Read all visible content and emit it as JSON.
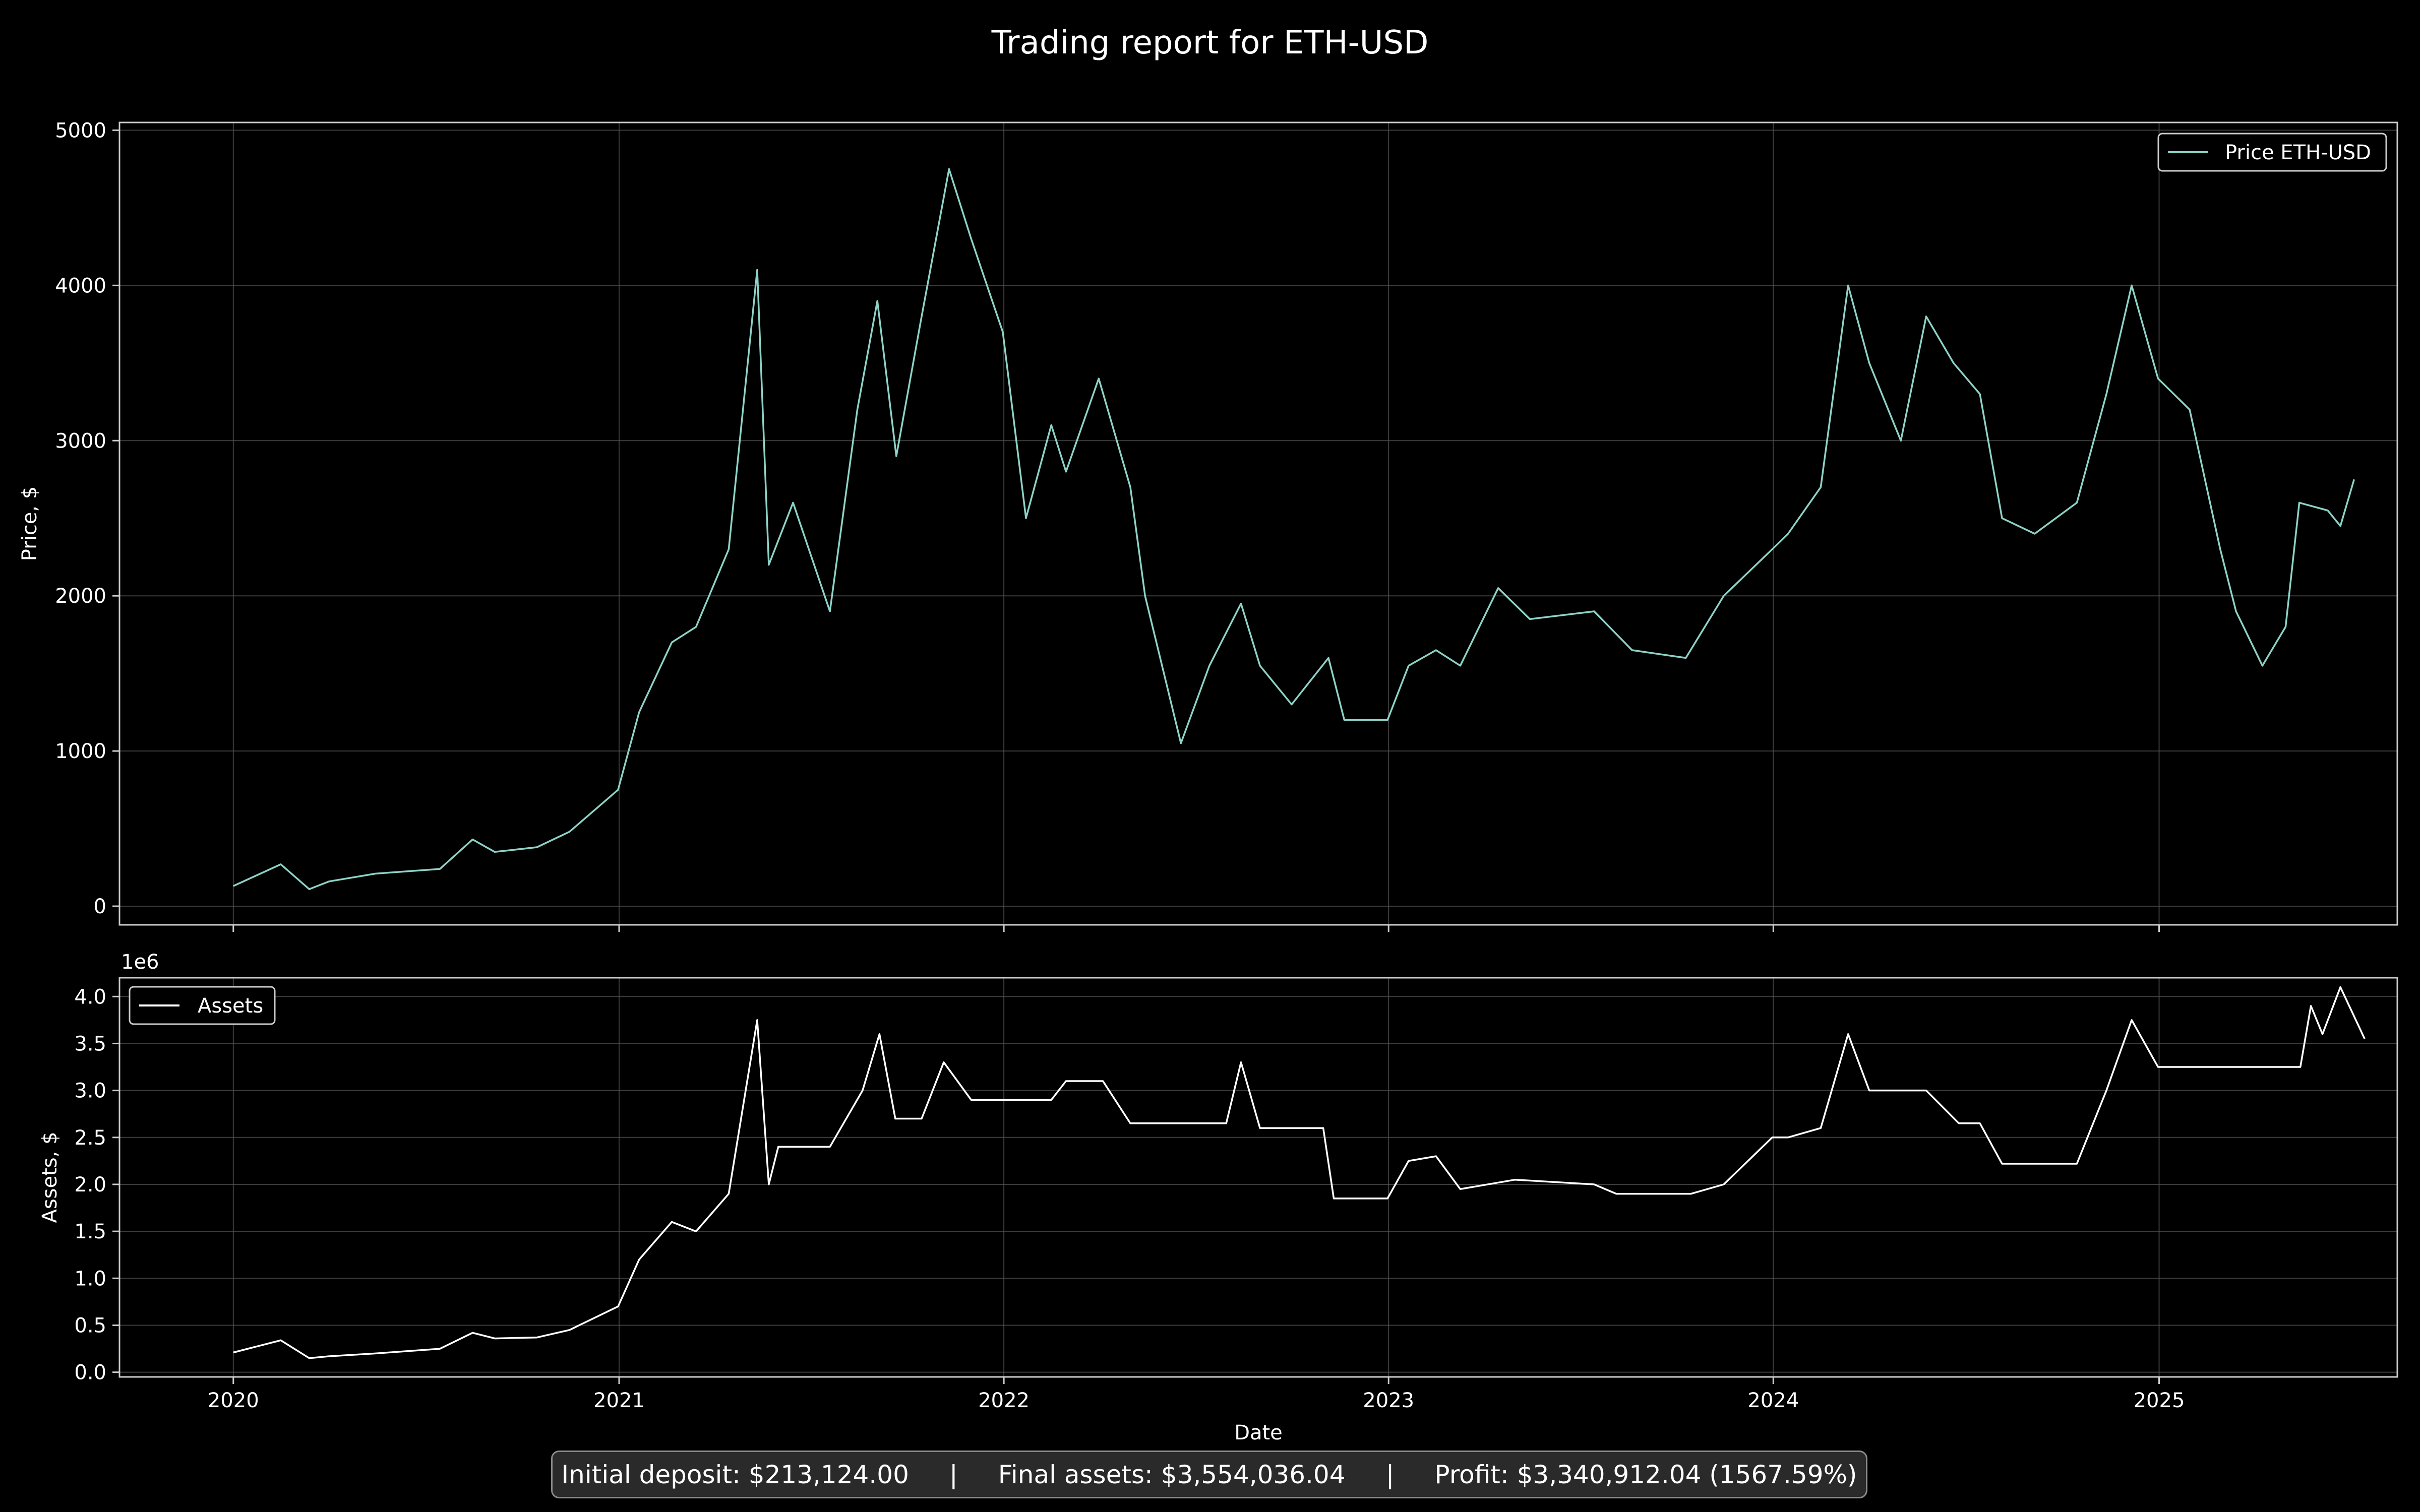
{
  "title": "Trading report for ETH-USD",
  "summary": {
    "initial": "Initial deposit: $213,124.00",
    "final": "Final assets: $3,554,036.04",
    "profit": "Profit: $3,340,912.04 (1567.59%)",
    "separator": "|"
  },
  "colors": {
    "price": "#8dd3c7",
    "assets": "#ffffff",
    "grid": "#555555",
    "frame": "#cccccc"
  },
  "chart_data": [
    {
      "type": "line",
      "ylabel": "Price, $",
      "ylim": [
        -120,
        5050
      ],
      "yticks": [
        0,
        1000,
        2000,
        3000,
        4000,
        5000
      ],
      "xlim": [
        "2019-09-15",
        "2025-08-15"
      ],
      "xticks": [
        "2020",
        "2021",
        "2022",
        "2023",
        "2024",
        "2025"
      ],
      "grid": true,
      "legend": "top-right",
      "series": [
        {
          "name": "Price ETH-USD",
          "x": [
            "2020-01-01",
            "2020-02-15",
            "2020-03-13",
            "2020-04-01",
            "2020-05-15",
            "2020-07-15",
            "2020-08-15",
            "2020-09-05",
            "2020-10-15",
            "2020-11-15",
            "2020-12-31",
            "2021-01-20",
            "2021-02-20",
            "2021-03-15",
            "2021-04-15",
            "2021-05-12",
            "2021-05-23",
            "2021-06-15",
            "2021-07-20",
            "2021-08-15",
            "2021-09-03",
            "2021-09-21",
            "2021-10-15",
            "2021-11-10",
            "2021-12-01",
            "2021-12-31",
            "2022-01-22",
            "2022-02-15",
            "2022-03-01",
            "2022-04-01",
            "2022-05-01",
            "2022-05-15",
            "2022-06-18",
            "2022-07-15",
            "2022-08-14",
            "2022-09-01",
            "2022-10-01",
            "2022-11-05",
            "2022-11-20",
            "2022-12-31",
            "2023-01-20",
            "2023-02-15",
            "2023-03-10",
            "2023-04-15",
            "2023-05-15",
            "2023-07-15",
            "2023-08-20",
            "2023-10-10",
            "2023-11-15",
            "2023-12-31",
            "2024-01-15",
            "2024-02-15",
            "2024-03-12",
            "2024-04-01",
            "2024-05-01",
            "2024-05-25",
            "2024-06-20",
            "2024-07-15",
            "2024-08-05",
            "2024-09-05",
            "2024-10-15",
            "2024-11-12",
            "2024-12-06",
            "2024-12-31",
            "2025-01-30",
            "2025-02-28",
            "2025-03-15",
            "2025-04-09",
            "2025-05-01",
            "2025-05-14",
            "2025-06-10",
            "2025-06-22",
            "2025-07-05"
          ],
          "y": [
            130,
            270,
            110,
            160,
            210,
            240,
            430,
            350,
            380,
            480,
            750,
            1250,
            1700,
            1800,
            2300,
            4100,
            2200,
            2600,
            1900,
            3200,
            3900,
            2900,
            3800,
            4750,
            4300,
            3700,
            2500,
            3100,
            2800,
            3400,
            2700,
            2000,
            1050,
            1550,
            1950,
            1550,
            1300,
            1600,
            1200,
            1200,
            1550,
            1650,
            1550,
            2050,
            1850,
            1900,
            1650,
            1600,
            2000,
            2300,
            2400,
            2700,
            4000,
            3500,
            3000,
            3800,
            3500,
            3300,
            2500,
            2400,
            2600,
            3300,
            4000,
            3400,
            3200,
            2300,
            1900,
            1550,
            1800,
            2600,
            2550,
            2450,
            2750
          ]
        }
      ]
    },
    {
      "type": "line",
      "ylabel": "Assets, $",
      "scale_label": "1e6",
      "ylim": [
        -0.05,
        4.2
      ],
      "yticks": [
        "0.0",
        "0.5",
        "1.0",
        "1.5",
        "2.0",
        "2.5",
        "3.0",
        "3.5",
        "4.0"
      ],
      "xlabel": "Date",
      "xlim": [
        "2019-09-15",
        "2025-08-15"
      ],
      "xticks": [
        "2020",
        "2021",
        "2022",
        "2023",
        "2024",
        "2025"
      ],
      "grid": true,
      "legend": "top-left",
      "series": [
        {
          "name": "Assets",
          "x": [
            "2020-01-01",
            "2020-02-15",
            "2020-03-13",
            "2020-04-01",
            "2020-05-15",
            "2020-07-15",
            "2020-08-15",
            "2020-09-05",
            "2020-10-15",
            "2020-11-15",
            "2020-12-31",
            "2021-01-20",
            "2021-02-20",
            "2021-03-15",
            "2021-04-15",
            "2021-05-12",
            "2021-05-23",
            "2021-06-01",
            "2021-07-20",
            "2021-08-20",
            "2021-09-05",
            "2021-09-20",
            "2021-10-15",
            "2021-11-05",
            "2021-12-01",
            "2022-02-15",
            "2022-03-01",
            "2022-04-05",
            "2022-05-01",
            "2022-07-31",
            "2022-08-14",
            "2022-09-01",
            "2022-10-31",
            "2022-11-10",
            "2022-12-31",
            "2023-01-20",
            "2023-02-15",
            "2023-03-10",
            "2023-05-01",
            "2023-07-15",
            "2023-08-05",
            "2023-10-15",
            "2023-11-15",
            "2023-12-31",
            "2024-01-15",
            "2024-02-15",
            "2024-03-12",
            "2024-04-01",
            "2024-05-25",
            "2024-06-25",
            "2024-07-15",
            "2024-08-05",
            "2024-10-15",
            "2024-11-12",
            "2024-12-06",
            "2024-12-31",
            "2025-05-15",
            "2025-05-25",
            "2025-06-05",
            "2025-06-22",
            "2025-07-15"
          ],
          "y": [
            0.21,
            0.34,
            0.15,
            0.17,
            0.2,
            0.25,
            0.42,
            0.36,
            0.37,
            0.45,
            0.7,
            1.2,
            1.6,
            1.5,
            1.9,
            3.75,
            2.0,
            2.4,
            2.4,
            3.0,
            3.6,
            2.7,
            2.7,
            3.3,
            2.9,
            2.9,
            3.1,
            3.1,
            2.65,
            2.65,
            3.3,
            2.6,
            2.6,
            1.85,
            1.85,
            2.25,
            2.3,
            1.95,
            2.05,
            2.0,
            1.9,
            1.9,
            2.0,
            2.5,
            2.5,
            2.6,
            3.6,
            3.0,
            3.0,
            2.65,
            2.65,
            2.22,
            2.22,
            3.0,
            3.75,
            3.25,
            3.25,
            3.9,
            3.6,
            4.1,
            3.55
          ]
        }
      ]
    }
  ]
}
